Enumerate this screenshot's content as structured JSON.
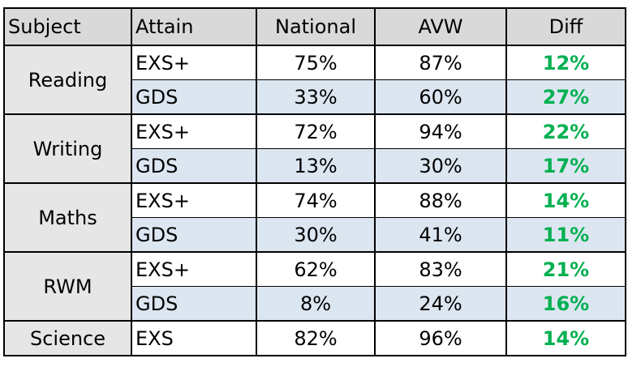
{
  "headers": {
    "subject": "Subject",
    "attain": "Attain",
    "national": "National",
    "avw": "AVW",
    "diff": "Diff"
  },
  "colors": {
    "header_bg": "#d9d9d9",
    "subject_bg": "#e7e6e6",
    "alt_row_bg": "#dce6f1",
    "diff_text": "#00b050"
  },
  "rows": {
    "reading": {
      "subject": "Reading",
      "r1": {
        "attain": "EXS+",
        "national": "75%",
        "avw": "87%",
        "diff": "12%"
      },
      "r2": {
        "attain": "GDS",
        "national": "33%",
        "avw": "60%",
        "diff": "27%"
      }
    },
    "writing": {
      "subject": "Writing",
      "r1": {
        "attain": "EXS+",
        "national": "72%",
        "avw": "94%",
        "diff": "22%"
      },
      "r2": {
        "attain": "GDS",
        "national": "13%",
        "avw": "30%",
        "diff": "17%"
      }
    },
    "maths": {
      "subject": "Maths",
      "r1": {
        "attain": "EXS+",
        "national": "74%",
        "avw": "88%",
        "diff": "14%"
      },
      "r2": {
        "attain": "GDS",
        "national": "30%",
        "avw": "41%",
        "diff": "11%"
      }
    },
    "rwm": {
      "subject": "RWM",
      "r1": {
        "attain": "EXS+",
        "national": "62%",
        "avw": "83%",
        "diff": "21%"
      },
      "r2": {
        "attain": "GDS",
        "national": "8%",
        "avw": "24%",
        "diff": "16%"
      }
    },
    "science": {
      "subject": "Science",
      "r1": {
        "attain": "EXS",
        "national": "82%",
        "avw": "96%",
        "diff": "14%"
      }
    }
  }
}
